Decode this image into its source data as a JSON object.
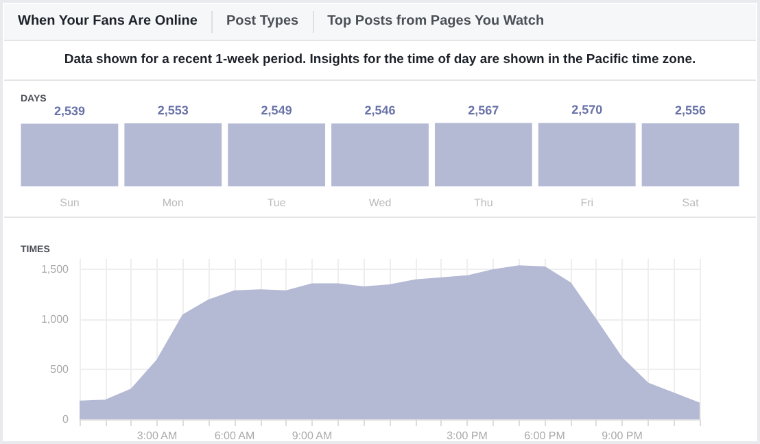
{
  "chart_data": [
    {
      "type": "bar",
      "title": "DAYS",
      "subtitle": "Data shown for a recent 1-week period. Insights for the time of day are shown in the Pacific time zone.",
      "annotations": [
        "When Your Fans Are Online",
        "Post Types",
        "Top Posts from Pages You Watch"
      ],
      "categories": [
        "Sun",
        "Mon",
        "Tue",
        "Wed",
        "Thu",
        "Fri",
        "Sat"
      ],
      "values": [
        2539,
        2553,
        2549,
        2546,
        2567,
        2570,
        2556
      ],
      "value_labels": [
        "2,539",
        "2,553",
        "2,549",
        "2,546",
        "2,567",
        "2,570",
        "2,556"
      ],
      "color": "#b4b9d4"
    },
    {
      "type": "area",
      "title": "TIMES",
      "x": [
        0,
        1,
        2,
        3,
        4,
        5,
        6,
        7,
        8,
        9,
        10,
        11,
        12,
        13,
        14,
        15,
        16,
        17,
        18,
        19,
        20,
        21,
        22,
        23,
        24
      ],
      "values": [
        180,
        190,
        300,
        590,
        1040,
        1190,
        1280,
        1290,
        1280,
        1350,
        1350,
        1320,
        1340,
        1390,
        1410,
        1430,
        1490,
        1530,
        1520,
        1360,
        990,
        610,
        360,
        260,
        160
      ],
      "color": "#b4b9d4",
      "marker": "none",
      "grid": true,
      "xlim": [
        0,
        24
      ],
      "ylim": [
        0,
        1600
      ],
      "xticks": [
        {
          "value": 0,
          "label": null
        },
        {
          "value": 1,
          "label": null
        },
        {
          "value": 2,
          "label": null
        },
        {
          "value": 3,
          "label": "3:00 AM"
        },
        {
          "value": 4,
          "label": null
        },
        {
          "value": 5,
          "label": null
        },
        {
          "value": 6,
          "label": "6:00 AM"
        },
        {
          "value": 7,
          "label": null
        },
        {
          "value": 8,
          "label": null
        },
        {
          "value": 9,
          "label": "9:00 AM"
        },
        {
          "value": 10,
          "label": null
        },
        {
          "value": 11,
          "label": null
        },
        {
          "value": 12,
          "label": null
        },
        {
          "value": 13,
          "label": null
        },
        {
          "value": 14,
          "label": null
        },
        {
          "value": 15,
          "label": "3:00 PM"
        },
        {
          "value": 16,
          "label": null
        },
        {
          "value": 17,
          "label": null
        },
        {
          "value": 18,
          "label": "6:00 PM"
        },
        {
          "value": 19,
          "label": null
        },
        {
          "value": 20,
          "label": null
        },
        {
          "value": 21,
          "label": "9:00 PM"
        },
        {
          "value": 22,
          "label": null
        },
        {
          "value": 23,
          "label": null
        },
        {
          "value": 24,
          "label": null
        }
      ],
      "yticks": [
        {
          "value": 0,
          "label": "0"
        },
        {
          "value": 500,
          "label": "500"
        },
        {
          "value": 1000,
          "label": "1,000"
        },
        {
          "value": 1500,
          "label": "1,500"
        }
      ]
    }
  ]
}
